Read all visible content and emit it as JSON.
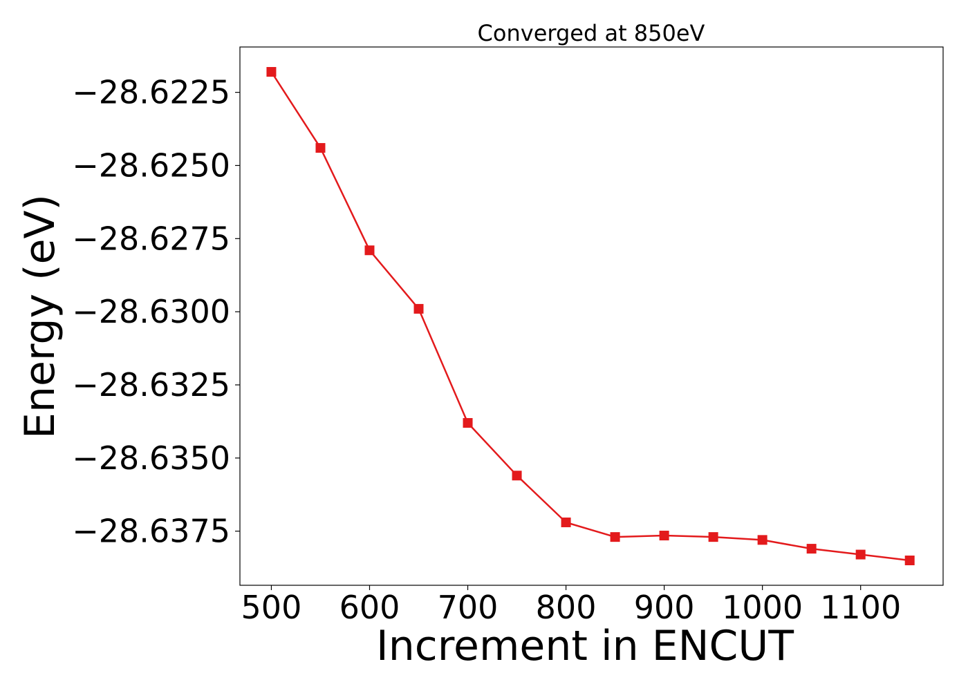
{
  "chart_data": {
    "type": "line",
    "title": "Converged at 850eV",
    "xlabel": "Increment in ENCUT",
    "ylabel": "Energy (eV)",
    "x": [
      500,
      550,
      600,
      650,
      700,
      750,
      800,
      850,
      900,
      950,
      1000,
      1050,
      1100,
      1150
    ],
    "series": [
      {
        "values": [
          -28.6218,
          -28.6244,
          -28.6279,
          -28.6299,
          -28.6338,
          -28.6356,
          -28.6372,
          -28.6377,
          -28.63765,
          -28.6377,
          -28.6378,
          -28.6381,
          -28.6383,
          -28.6385
        ],
        "color": "#e31a1c",
        "marker": "square"
      }
    ],
    "xticks": [
      500,
      600,
      700,
      800,
      900,
      1000,
      1100
    ],
    "xtick_labels": [
      "500",
      "600",
      "700",
      "800",
      "900",
      "1000",
      "1100"
    ],
    "yticks": [
      -28.6225,
      -28.625,
      -28.6275,
      -28.63,
      -28.6325,
      -28.635,
      -28.6375
    ],
    "ytick_labels": [
      "−28.6225",
      "−28.6250",
      "−28.6275",
      "−28.6300",
      "−28.6325",
      "−28.6350",
      "−28.6375"
    ],
    "xlim": [
      468,
      1184
    ],
    "ylim": [
      -28.63935,
      -28.62095
    ],
    "grid": false,
    "legend": false
  }
}
